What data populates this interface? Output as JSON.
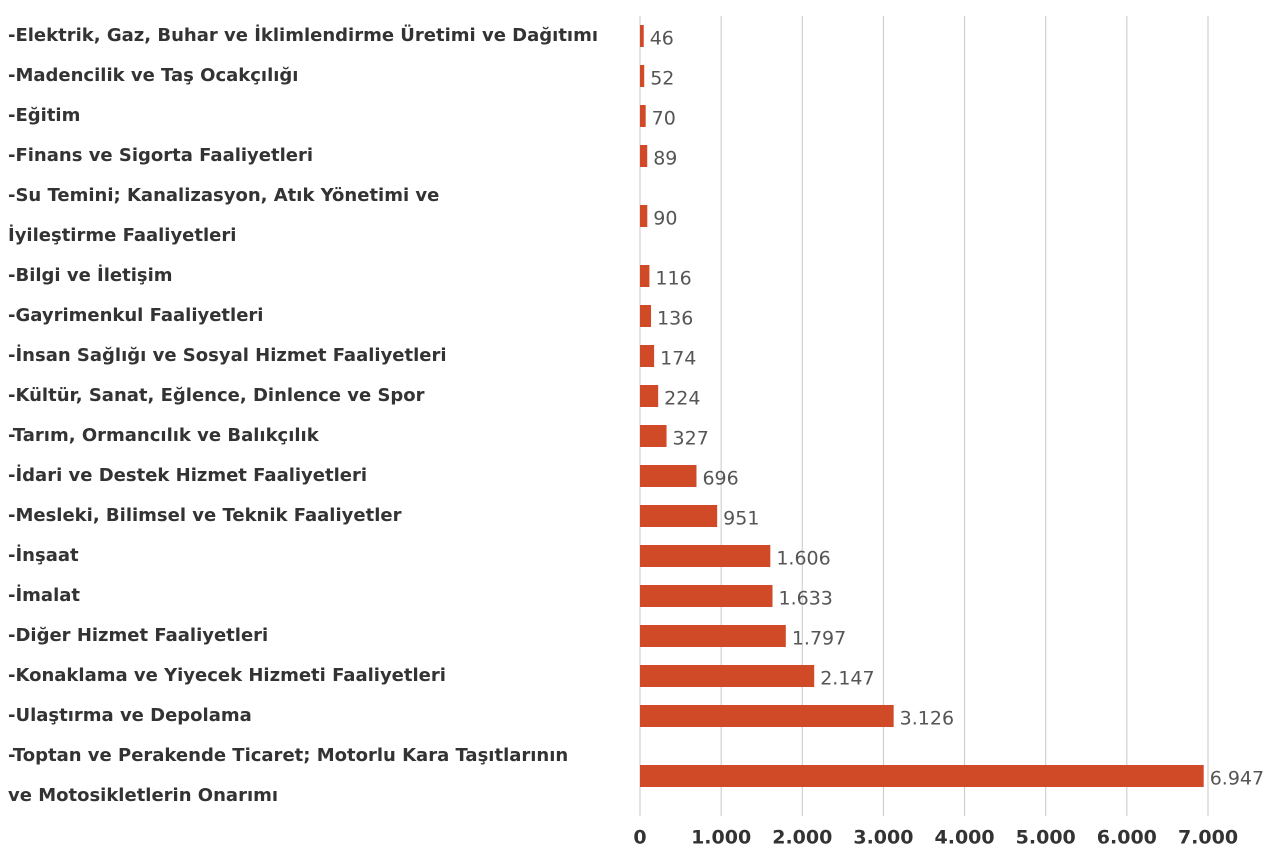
{
  "chart_data": {
    "type": "barh",
    "categories": [
      "-Elektrik, Gaz, Buhar ve İklimlendirme Üretimi ve Dağıtımı",
      "-Madencilik ve Taş Ocakçılığı",
      "-Eğitim",
      "-Finans ve Sigorta Faaliyetleri",
      "-Su Temini; Kanalizasyon, Atık Yönetimi ve\nİyileştirme Faaliyetleri",
      "-Bilgi ve İletişim",
      "-Gayrimenkul Faaliyetleri",
      "-İnsan Sağlığı ve Sosyal Hizmet Faaliyetleri",
      "-Kültür, Sanat, Eğlence, Dinlence ve Spor",
      "-Tarım, Ormancılık ve Balıkçılık",
      "-İdari ve Destek Hizmet Faaliyetleri",
      "-Mesleki, Bilimsel ve Teknik Faaliyetler",
      "-İnşaat",
      "-İmalat",
      "-Diğer Hizmet Faaliyetleri",
      "-Konaklama ve Yiyecek Hizmeti Faaliyetleri",
      "-Ulaştırma ve Depolama",
      "-Toptan ve Perakende Ticaret; Motorlu Kara Taşıtlarının\nve Motosikletlerin Onarımı"
    ],
    "values": [
      46,
      52,
      70,
      89,
      90,
      116,
      136,
      174,
      224,
      327,
      696,
      951,
      1606,
      1633,
      1797,
      2147,
      3126,
      6947
    ],
    "value_labels": [
      "46",
      "52",
      "70",
      "89",
      "90",
      "116",
      "136",
      "174",
      "224",
      "327",
      "696",
      "951",
      "1.606",
      "1.633",
      "1.797",
      "2.147",
      "3.126",
      "6.947"
    ],
    "color": "#d04a28",
    "xlim": [
      0,
      7000
    ],
    "xticks": [
      0,
      {
        "value": 1000,
        "label": "1.000"
      },
      {
        "value": 2000,
        "label": "2.000"
      },
      {
        "value": 3000,
        "label": "3.000"
      },
      {
        "value": 4000,
        "label": "4.000"
      },
      {
        "value": 5000,
        "label": "5.000"
      },
      {
        "value": 6000,
        "label": "6.000"
      },
      {
        "value": 7000,
        "label": "7.000"
      }
    ],
    "grid": true
  }
}
